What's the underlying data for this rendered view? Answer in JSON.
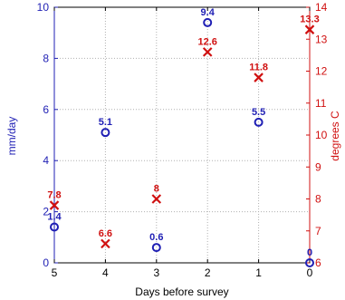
{
  "chart_data": {
    "type": "scatter",
    "xlabel": "Days before survey",
    "x_ticks": [
      "5",
      "4",
      "3",
      "2",
      "1",
      "0"
    ],
    "xlim": [
      5,
      0
    ],
    "grid": true,
    "left_axis": {
      "label": "mm/day",
      "ylim": [
        0,
        10
      ],
      "ticks": [
        "0",
        "2",
        "4",
        "6",
        "8",
        "10"
      ],
      "color": "#1f1fb4"
    },
    "right_axis": {
      "label": "degrees C",
      "ylim": [
        6,
        14
      ],
      "ticks": [
        "6",
        "7",
        "8",
        "9",
        "10",
        "11",
        "12",
        "13",
        "14"
      ],
      "color": "#d01010"
    },
    "series": [
      {
        "axis": "left",
        "marker": "circle",
        "color": "#1f1fb4",
        "x": [
          5,
          4,
          3,
          2,
          1,
          0
        ],
        "y": [
          1.4,
          5.1,
          0.6,
          9.4,
          5.5,
          0
        ],
        "labels": [
          "1.4",
          "5.1",
          "0.6",
          "9.4",
          "5.5",
          "0"
        ]
      },
      {
        "axis": "right",
        "marker": "x",
        "color": "#d01010",
        "x": [
          5,
          4,
          3,
          2,
          1,
          0
        ],
        "y": [
          7.8,
          6.6,
          8,
          12.6,
          11.8,
          13.3
        ],
        "labels": [
          "7.8",
          "6.6",
          "8",
          "12.6",
          "11.8",
          "13.3"
        ]
      }
    ]
  }
}
